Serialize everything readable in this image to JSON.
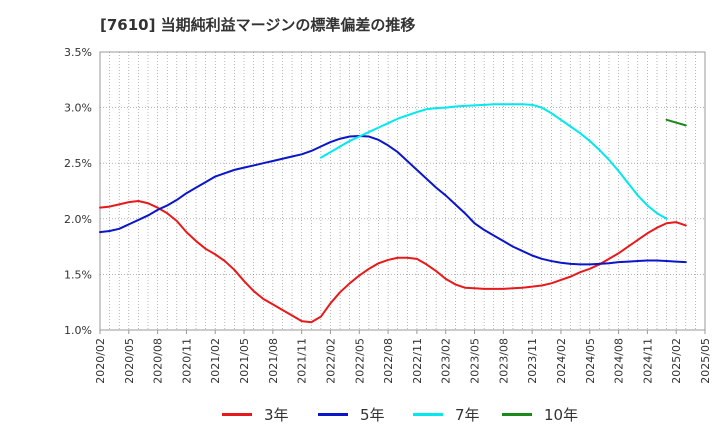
{
  "chart_data": {
    "type": "line",
    "title": "[7610]  当期純利益マージンの標準偏差の推移",
    "xlabel": "",
    "ylabel": "",
    "ylim": [
      1.0,
      3.5
    ],
    "yticks": [
      "1.0%",
      "1.5%",
      "2.0%",
      "2.5%",
      "3.0%",
      "3.5%"
    ],
    "xticks": [
      "2020/02",
      "2020/05",
      "2020/08",
      "2020/11",
      "2021/02",
      "2021/05",
      "2021/08",
      "2021/11",
      "2022/02",
      "2022/05",
      "2022/08",
      "2022/11",
      "2023/02",
      "2023/05",
      "2023/08",
      "2023/11",
      "2024/02",
      "2024/05",
      "2024/08",
      "2024/11",
      "2025/02",
      "2025/05"
    ],
    "grid": true,
    "legend_position": "bottom",
    "series": [
      {
        "name": "3年",
        "color": "#e8191a",
        "points": [
          [
            "2020/02",
            2.1
          ],
          [
            "2020/03",
            2.11
          ],
          [
            "2020/04",
            2.13
          ],
          [
            "2020/05",
            2.15
          ],
          [
            "2020/06",
            2.16
          ],
          [
            "2020/07",
            2.14
          ],
          [
            "2020/08",
            2.1
          ],
          [
            "2020/09",
            2.05
          ],
          [
            "2020/10",
            1.98
          ],
          [
            "2020/11",
            1.88
          ],
          [
            "2020/12",
            1.8
          ],
          [
            "2021/01",
            1.73
          ],
          [
            "2021/02",
            1.68
          ],
          [
            "2021/03",
            1.62
          ],
          [
            "2021/04",
            1.54
          ],
          [
            "2021/05",
            1.44
          ],
          [
            "2021/06",
            1.35
          ],
          [
            "2021/07",
            1.28
          ],
          [
            "2021/08",
            1.23
          ],
          [
            "2021/09",
            1.18
          ],
          [
            "2021/10",
            1.13
          ],
          [
            "2021/11",
            1.08
          ],
          [
            "2021/12",
            1.07
          ],
          [
            "2022/01",
            1.12
          ],
          [
            "2022/02",
            1.24
          ],
          [
            "2022/03",
            1.34
          ],
          [
            "2022/04",
            1.42
          ],
          [
            "2022/05",
            1.49
          ],
          [
            "2022/06",
            1.55
          ],
          [
            "2022/07",
            1.6
          ],
          [
            "2022/08",
            1.63
          ],
          [
            "2022/09",
            1.65
          ],
          [
            "2022/10",
            1.65
          ],
          [
            "2022/11",
            1.64
          ],
          [
            "2022/12",
            1.59
          ],
          [
            "2023/01",
            1.53
          ],
          [
            "2023/02",
            1.46
          ],
          [
            "2023/03",
            1.41
          ],
          [
            "2023/04",
            1.38
          ],
          [
            "2023/05",
            1.375
          ],
          [
            "2023/06",
            1.37
          ],
          [
            "2023/07",
            1.37
          ],
          [
            "2023/08",
            1.37
          ],
          [
            "2023/09",
            1.375
          ],
          [
            "2023/10",
            1.38
          ],
          [
            "2023/11",
            1.39
          ],
          [
            "2023/12",
            1.4
          ],
          [
            "2024/01",
            1.42
          ],
          [
            "2024/02",
            1.45
          ],
          [
            "2024/03",
            1.48
          ],
          [
            "2024/04",
            1.52
          ],
          [
            "2024/05",
            1.55
          ],
          [
            "2024/06",
            1.59
          ],
          [
            "2024/07",
            1.64
          ],
          [
            "2024/08",
            1.69
          ],
          [
            "2024/09",
            1.75
          ],
          [
            "2024/10",
            1.81
          ],
          [
            "2024/11",
            1.87
          ],
          [
            "2024/12",
            1.92
          ],
          [
            "2025/01",
            1.96
          ],
          [
            "2025/02",
            1.97
          ],
          [
            "2025/03",
            1.94
          ]
        ]
      },
      {
        "name": "5年",
        "color": "#0a16c8",
        "points": [
          [
            "2020/02",
            1.88
          ],
          [
            "2020/03",
            1.89
          ],
          [
            "2020/04",
            1.91
          ],
          [
            "2020/05",
            1.95
          ],
          [
            "2020/06",
            1.99
          ],
          [
            "2020/07",
            2.03
          ],
          [
            "2020/08",
            2.08
          ],
          [
            "2020/09",
            2.12
          ],
          [
            "2020/10",
            2.17
          ],
          [
            "2020/11",
            2.23
          ],
          [
            "2020/12",
            2.28
          ],
          [
            "2021/01",
            2.33
          ],
          [
            "2021/02",
            2.38
          ],
          [
            "2021/03",
            2.41
          ],
          [
            "2021/04",
            2.44
          ],
          [
            "2021/05",
            2.46
          ],
          [
            "2021/06",
            2.48
          ],
          [
            "2021/07",
            2.5
          ],
          [
            "2021/08",
            2.52
          ],
          [
            "2021/09",
            2.54
          ],
          [
            "2021/10",
            2.56
          ],
          [
            "2021/11",
            2.58
          ],
          [
            "2021/12",
            2.61
          ],
          [
            "2022/01",
            2.65
          ],
          [
            "2022/02",
            2.69
          ],
          [
            "2022/03",
            2.72
          ],
          [
            "2022/04",
            2.74
          ],
          [
            "2022/05",
            2.745
          ],
          [
            "2022/06",
            2.74
          ],
          [
            "2022/07",
            2.71
          ],
          [
            "2022/08",
            2.66
          ],
          [
            "2022/09",
            2.6
          ],
          [
            "2022/10",
            2.52
          ],
          [
            "2022/11",
            2.44
          ],
          [
            "2022/12",
            2.36
          ],
          [
            "2023/01",
            2.28
          ],
          [
            "2023/02",
            2.21
          ],
          [
            "2023/03",
            2.13
          ],
          [
            "2023/04",
            2.05
          ],
          [
            "2023/05",
            1.96
          ],
          [
            "2023/06",
            1.9
          ],
          [
            "2023/07",
            1.85
          ],
          [
            "2023/08",
            1.8
          ],
          [
            "2023/09",
            1.75
          ],
          [
            "2023/10",
            1.71
          ],
          [
            "2023/11",
            1.67
          ],
          [
            "2023/12",
            1.64
          ],
          [
            "2024/01",
            1.62
          ],
          [
            "2024/02",
            1.605
          ],
          [
            "2024/03",
            1.595
          ],
          [
            "2024/04",
            1.59
          ],
          [
            "2024/05",
            1.59
          ],
          [
            "2024/06",
            1.595
          ],
          [
            "2024/07",
            1.6
          ],
          [
            "2024/08",
            1.61
          ],
          [
            "2024/09",
            1.615
          ],
          [
            "2024/10",
            1.62
          ],
          [
            "2024/11",
            1.625
          ],
          [
            "2024/12",
            1.625
          ],
          [
            "2025/01",
            1.62
          ],
          [
            "2025/02",
            1.615
          ],
          [
            "2025/03",
            1.61
          ]
        ]
      },
      {
        "name": "7年",
        "color": "#00e8f0",
        "points": [
          [
            "2022/01",
            2.55
          ],
          [
            "2022/02",
            2.6
          ],
          [
            "2022/03",
            2.65
          ],
          [
            "2022/04",
            2.7
          ],
          [
            "2022/05",
            2.74
          ],
          [
            "2022/06",
            2.78
          ],
          [
            "2022/07",
            2.82
          ],
          [
            "2022/08",
            2.86
          ],
          [
            "2022/09",
            2.9
          ],
          [
            "2022/10",
            2.93
          ],
          [
            "2022/11",
            2.96
          ],
          [
            "2022/12",
            2.985
          ],
          [
            "2023/01",
            2.995
          ],
          [
            "2023/02",
            3.0
          ],
          [
            "2023/03",
            3.01
          ],
          [
            "2023/04",
            3.015
          ],
          [
            "2023/05",
            3.02
          ],
          [
            "2023/06",
            3.025
          ],
          [
            "2023/07",
            3.03
          ],
          [
            "2023/08",
            3.03
          ],
          [
            "2023/09",
            3.03
          ],
          [
            "2023/10",
            3.03
          ],
          [
            "2023/11",
            3.025
          ],
          [
            "2023/12",
            3.0
          ],
          [
            "2024/01",
            2.95
          ],
          [
            "2024/02",
            2.89
          ],
          [
            "2024/03",
            2.83
          ],
          [
            "2024/04",
            2.77
          ],
          [
            "2024/05",
            2.7
          ],
          [
            "2024/06",
            2.62
          ],
          [
            "2024/07",
            2.53
          ],
          [
            "2024/08",
            2.43
          ],
          [
            "2024/09",
            2.32
          ],
          [
            "2024/10",
            2.21
          ],
          [
            "2024/11",
            2.12
          ],
          [
            "2024/12",
            2.05
          ],
          [
            "2025/01",
            2.0
          ]
        ]
      },
      {
        "name": "10年",
        "color": "#1a8a1a",
        "points": [
          [
            "2025/01",
            2.89
          ],
          [
            "2025/03",
            2.84
          ]
        ]
      }
    ]
  }
}
